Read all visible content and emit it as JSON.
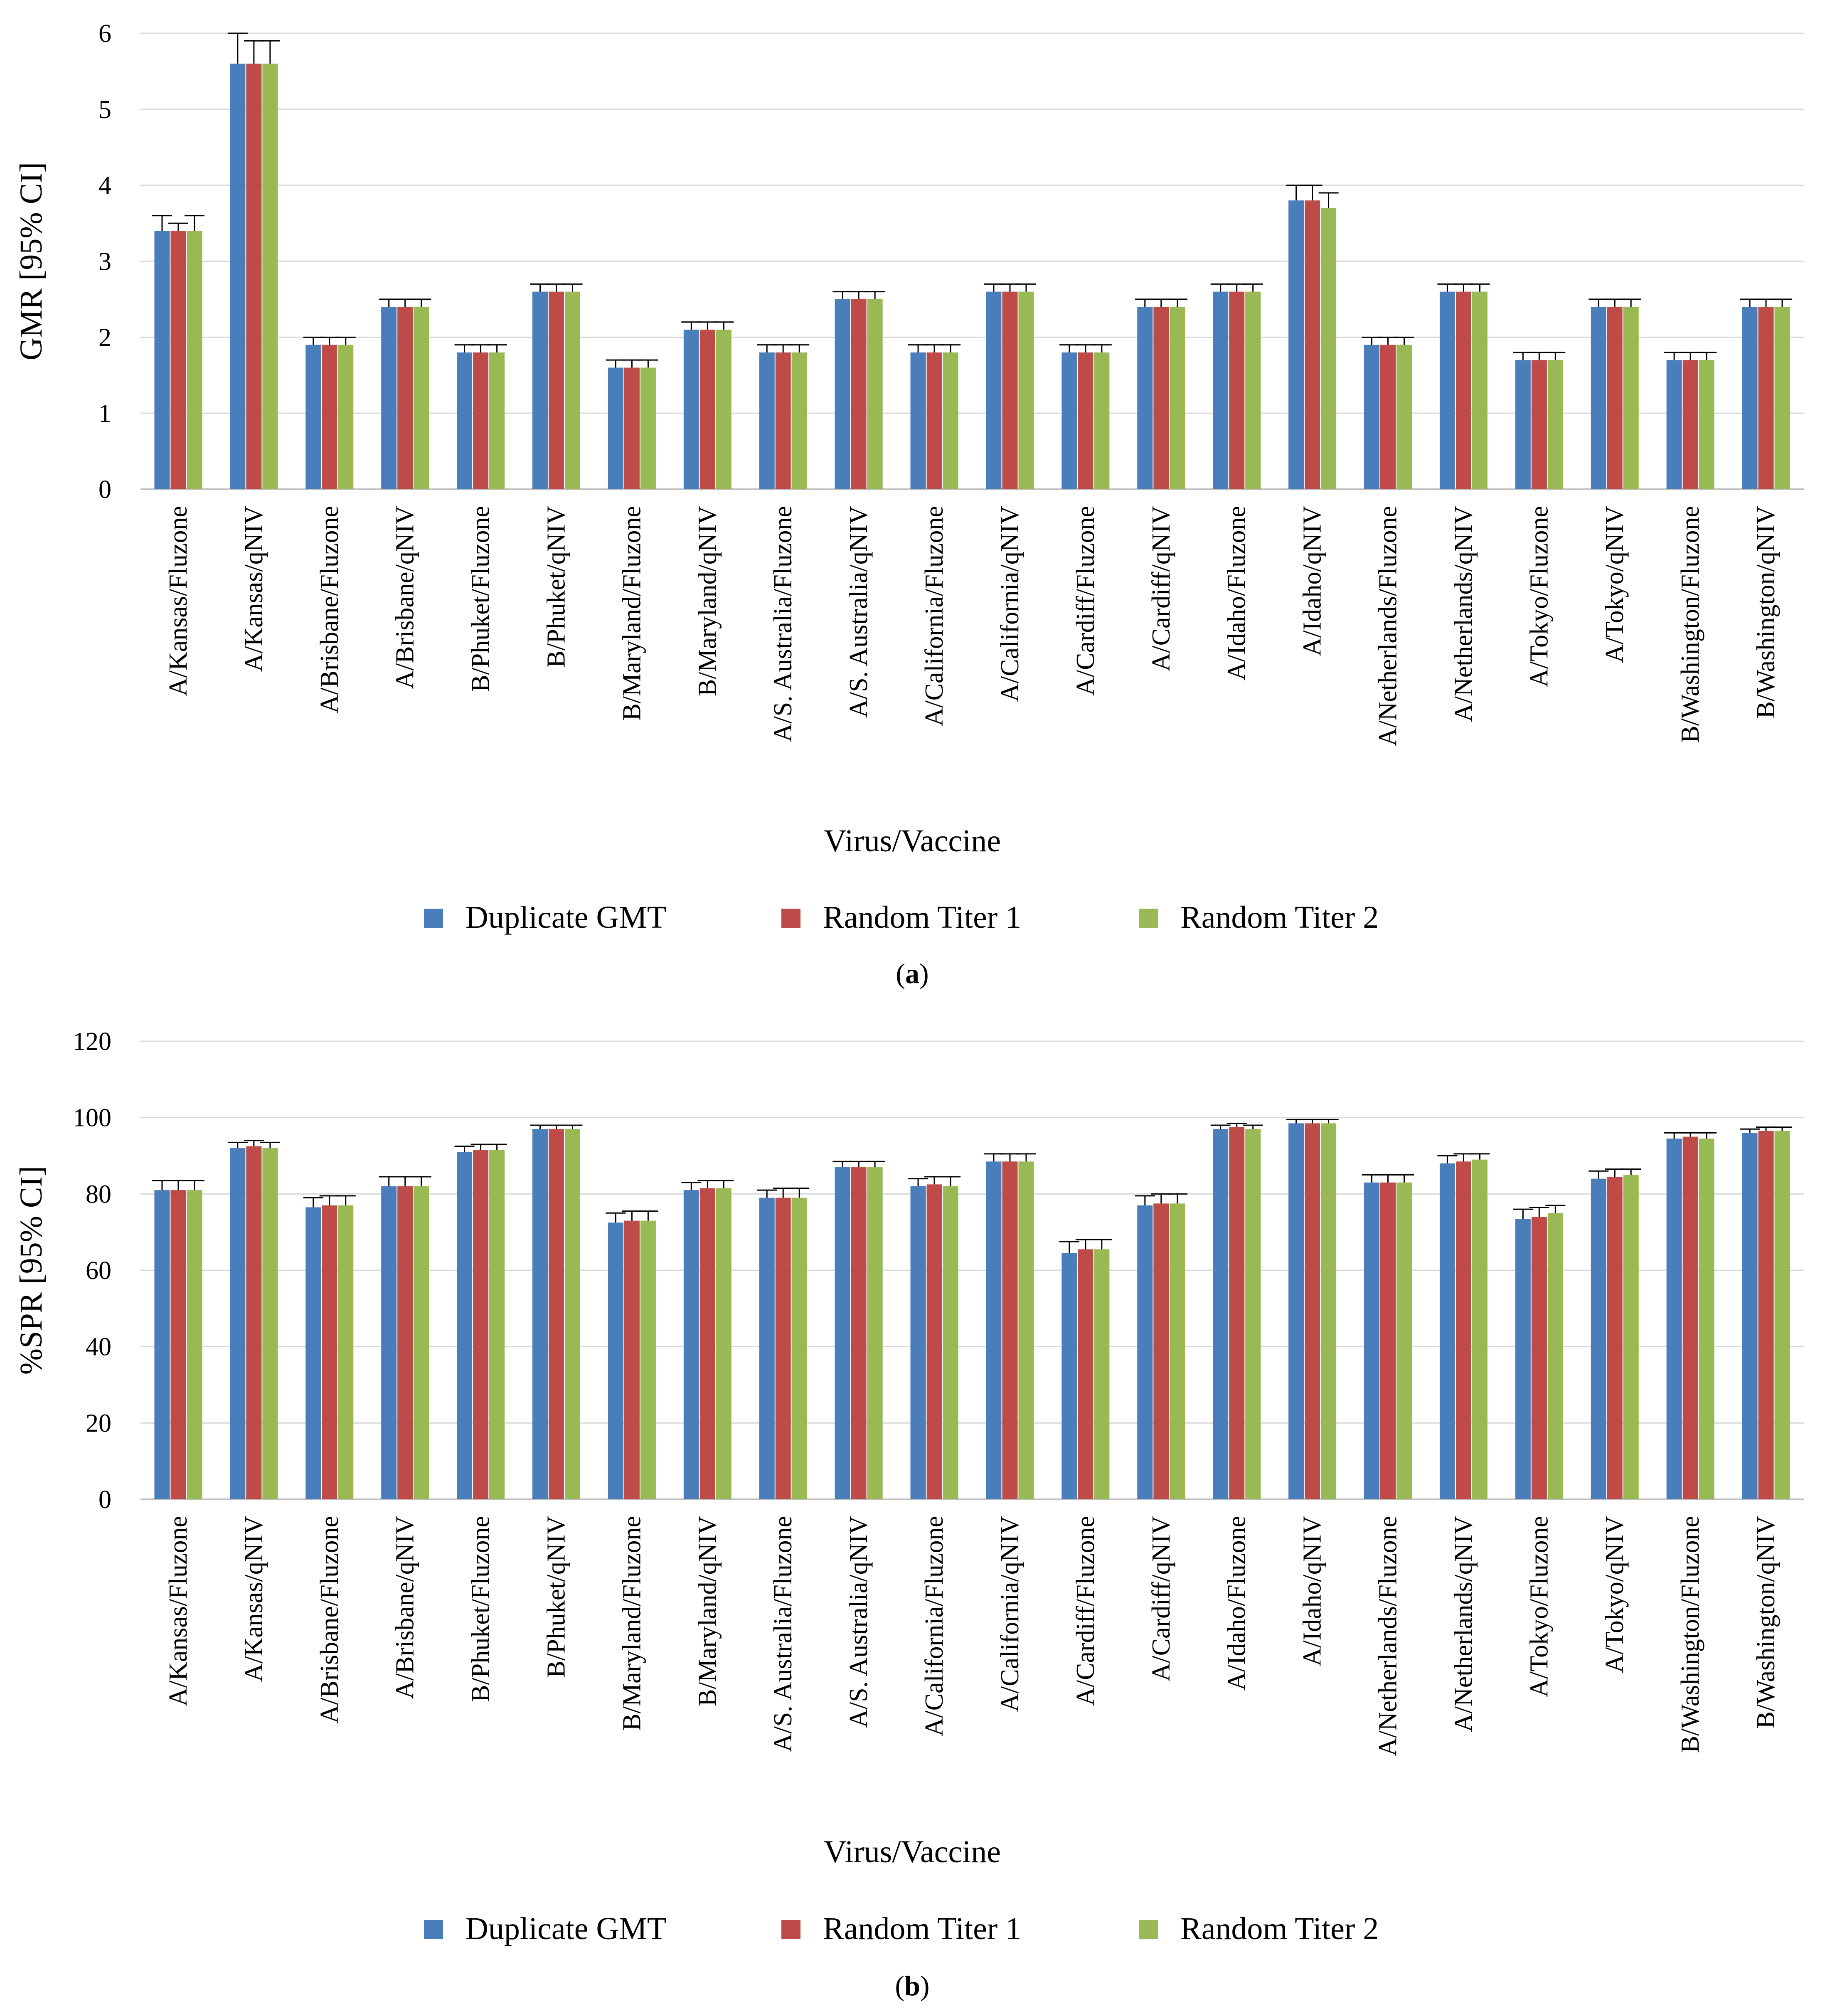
{
  "colors": {
    "duplicate_gmt": "#4a7ebb",
    "random_titer_1": "#be4b48",
    "random_titer_2": "#98b954",
    "gridline": "#d9d9d9",
    "axis": "#bfbfbf",
    "error_bar": "#000000"
  },
  "chart_data": [
    {
      "type": "bar",
      "panel_label": "a",
      "xlabel": "Virus/Vaccine",
      "ylabel": "GMR [95% CI]",
      "ylim": [
        0,
        6
      ],
      "yticks": [
        0,
        1,
        2,
        3,
        4,
        5,
        6
      ],
      "grid": true,
      "legend_position": "bottom",
      "categories": [
        "A/Kansas/Fluzone",
        "A/Kansas/qNIV",
        "A/Brisbane/Fluzone",
        "A/Brisbane/qNIV",
        "B/Phuket/Fluzone",
        "B/Phuket/qNIV",
        "B/Maryland/Fluzone",
        "B/Maryland/qNIV",
        "A/S. Australia/Fluzone",
        "A/S. Australia/qNIV",
        "A/California/Fluzone",
        "A/California/qNIV",
        "A/Cardiff/Fluzone",
        "A/Cardiff/qNIV",
        "A/Idaho/Fluzone",
        "A/Idaho/qNIV",
        "A/Netherlands/Fluzone",
        "A/Netherlands/qNIV",
        "A/Tokyo/Fluzone",
        "A/Tokyo/qNIV",
        "B/Washington/Fluzone",
        "B/Washington/qNIV"
      ],
      "series": [
        {
          "name": "Duplicate GMT",
          "values": [
            3.4,
            5.6,
            1.9,
            2.4,
            1.8,
            2.6,
            1.6,
            2.1,
            1.8,
            2.5,
            1.8,
            2.6,
            1.8,
            2.4,
            2.6,
            3.8,
            1.9,
            2.6,
            1.7,
            2.4,
            1.7,
            2.4
          ],
          "upper": [
            3.6,
            6.0,
            2.0,
            2.5,
            1.9,
            2.7,
            1.7,
            2.2,
            1.9,
            2.6,
            1.9,
            2.7,
            1.9,
            2.5,
            2.7,
            4.0,
            2.0,
            2.7,
            1.8,
            2.5,
            1.8,
            2.5
          ]
        },
        {
          "name": "Random Titer 1",
          "values": [
            3.4,
            5.6,
            1.9,
            2.4,
            1.8,
            2.6,
            1.6,
            2.1,
            1.8,
            2.5,
            1.8,
            2.6,
            1.8,
            2.4,
            2.6,
            3.8,
            1.9,
            2.6,
            1.7,
            2.4,
            1.7,
            2.4
          ],
          "upper": [
            3.5,
            5.9,
            2.0,
            2.5,
            1.9,
            2.7,
            1.7,
            2.2,
            1.9,
            2.6,
            1.9,
            2.7,
            1.9,
            2.5,
            2.7,
            4.0,
            2.0,
            2.7,
            1.8,
            2.5,
            1.8,
            2.5
          ]
        },
        {
          "name": "Random Titer 2",
          "values": [
            3.4,
            5.6,
            1.9,
            2.4,
            1.8,
            2.6,
            1.6,
            2.1,
            1.8,
            2.5,
            1.8,
            2.6,
            1.8,
            2.4,
            2.6,
            3.7,
            1.9,
            2.6,
            1.7,
            2.4,
            1.7,
            2.4
          ],
          "upper": [
            3.6,
            5.9,
            2.0,
            2.5,
            1.9,
            2.7,
            1.7,
            2.2,
            1.9,
            2.6,
            1.9,
            2.7,
            1.9,
            2.5,
            2.7,
            3.9,
            2.0,
            2.7,
            1.8,
            2.5,
            1.8,
            2.5
          ]
        }
      ]
    },
    {
      "type": "bar",
      "panel_label": "b",
      "xlabel": "Virus/Vaccine",
      "ylabel": "%SPR [95% CI]",
      "ylim": [
        0,
        120
      ],
      "yticks": [
        0,
        20,
        40,
        60,
        80,
        100,
        120
      ],
      "grid": true,
      "legend_position": "bottom",
      "categories": [
        "A/Kansas/Fluzone",
        "A/Kansas/qNIV",
        "A/Brisbane/Fluzone",
        "A/Brisbane/qNIV",
        "B/Phuket/Fluzone",
        "B/Phuket/qNIV",
        "B/Maryland/Fluzone",
        "B/Maryland/qNIV",
        "A/S. Australia/Fluzone",
        "A/S. Australia/qNIV",
        "A/California/Fluzone",
        "A/California/qNIV",
        "A/Cardiff/Fluzone",
        "A/Cardiff/qNIV",
        "A/Idaho/Fluzone",
        "A/Idaho/qNIV",
        "A/Netherlands/Fluzone",
        "A/Netherlands/qNIV",
        "A/Tokyo/Fluzone",
        "A/Tokyo/qNIV",
        "B/Washington/Fluzone",
        "B/Washington/qNIV"
      ],
      "series": [
        {
          "name": "Duplicate GMT",
          "values": [
            81,
            92,
            76.5,
            82,
            91,
            97,
            72.5,
            81,
            79,
            87,
            82,
            88.5,
            64.5,
            77,
            97,
            98.5,
            83,
            88,
            73.5,
            84,
            94.5,
            96
          ],
          "upper": [
            83.5,
            93.5,
            79,
            84.5,
            92.5,
            98,
            75,
            83,
            81,
            88.5,
            84,
            90.5,
            67.5,
            79.5,
            98,
            99.5,
            85,
            90,
            76,
            86,
            96,
            97
          ]
        },
        {
          "name": "Random Titer 1",
          "values": [
            81,
            92.5,
            77,
            82,
            91.5,
            97,
            73,
            81.5,
            79,
            87,
            82.5,
            88.5,
            65.5,
            77.5,
            97.5,
            98.5,
            83,
            88.5,
            74,
            84.5,
            95,
            96.5
          ],
          "upper": [
            83.5,
            94,
            79.5,
            84.5,
            93,
            98,
            75.5,
            83.5,
            81.5,
            88.5,
            84.5,
            90.5,
            68,
            80,
            98.5,
            99.5,
            85,
            90.5,
            76.5,
            86.5,
            96,
            97.5
          ]
        },
        {
          "name": "Random Titer 2",
          "values": [
            81,
            92,
            77,
            82,
            91.5,
            97,
            73,
            81.5,
            79,
            87,
            82,
            88.5,
            65.5,
            77.5,
            97,
            98.5,
            83,
            89,
            75,
            85,
            94.5,
            96.5
          ],
          "upper": [
            83.5,
            93.5,
            79.5,
            84.5,
            93,
            98,
            75.5,
            83.5,
            81.5,
            88.5,
            84.5,
            90.5,
            68,
            80,
            98,
            99.5,
            85,
            90.5,
            77,
            86.5,
            96,
            97.5
          ]
        }
      ]
    }
  ]
}
